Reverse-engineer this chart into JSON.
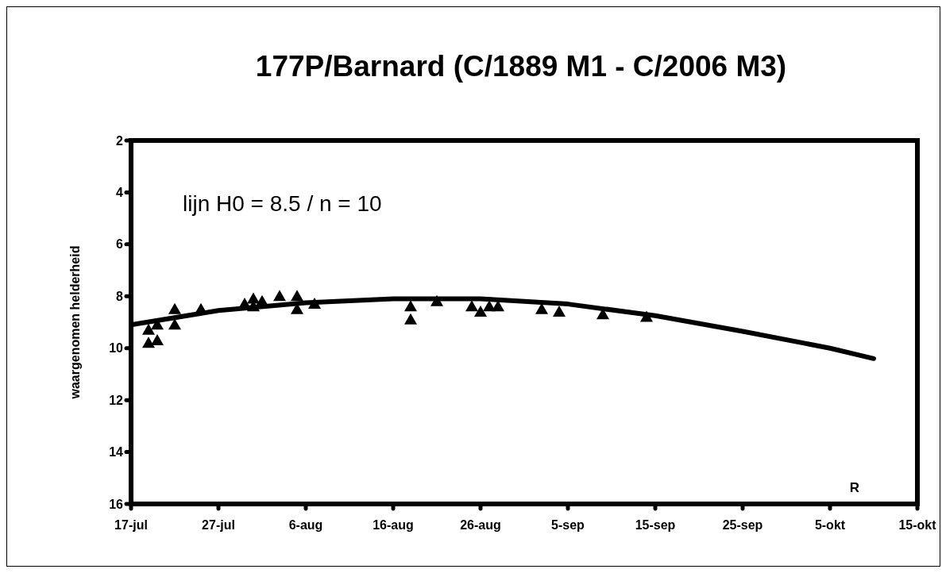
{
  "chart_data": {
    "type": "scatter",
    "title": "177P/Barnard (C/1889 M1 - C/2006 M3)",
    "ylabel": "waargenomen helderheid",
    "annotations": [
      "lijn H0 = 8.5 / n = 10",
      "R"
    ],
    "xlim": [
      "--07-17",
      "--10-15"
    ],
    "xticks": [
      {
        "value": "--07-17",
        "label": "17-jul"
      },
      {
        "value": "--07-27",
        "label": "27-jul"
      },
      {
        "value": "--08-06",
        "label": "6-aug"
      },
      {
        "value": "--08-16",
        "label": "16-aug"
      },
      {
        "value": "--08-26",
        "label": "26-aug"
      },
      {
        "value": "--09-05",
        "label": "5-sep"
      },
      {
        "value": "--09-15",
        "label": "15-sep"
      },
      {
        "value": "--09-25",
        "label": "25-sep"
      },
      {
        "value": "--10-05",
        "label": "5-okt"
      },
      {
        "value": "--10-15",
        "label": "15-okt"
      }
    ],
    "ylim": [
      16,
      2
    ],
    "yticks": [
      2,
      4,
      6,
      8,
      10,
      12,
      14,
      16
    ],
    "grid": false,
    "series": [
      {
        "marker": "triangle",
        "color": "#000000",
        "x": [
          "--07-19",
          "--07-19",
          "--07-20",
          "--07-20",
          "--07-22",
          "--07-22",
          "--07-25",
          "--07-30",
          "--07-31",
          "--07-31",
          "--08-01",
          "--08-03",
          "--08-05",
          "--08-05",
          "--08-07",
          "--08-18",
          "--08-18",
          "--08-21",
          "--08-25",
          "--08-26",
          "--08-27",
          "--08-28",
          "--09-02",
          "--09-04",
          "--09-09",
          "--09-14"
        ],
        "values": [
          9.3,
          9.8,
          9.1,
          9.7,
          8.5,
          9.1,
          8.5,
          8.3,
          8.1,
          8.4,
          8.2,
          8.0,
          8.0,
          8.5,
          8.3,
          8.4,
          8.9,
          8.2,
          8.4,
          8.6,
          8.4,
          8.4,
          8.5,
          8.6,
          8.7,
          8.8
        ]
      },
      {
        "type": "line",
        "marker": "none",
        "color": "#000000",
        "x": [
          "--07-17",
          "--07-27",
          "--08-06",
          "--08-16",
          "--08-26",
          "--09-05",
          "--09-15",
          "--09-25",
          "--10-05",
          "--10-10"
        ],
        "values": [
          9.1,
          8.55,
          8.25,
          8.1,
          8.1,
          8.3,
          8.75,
          9.35,
          10.0,
          10.4
        ]
      }
    ]
  }
}
